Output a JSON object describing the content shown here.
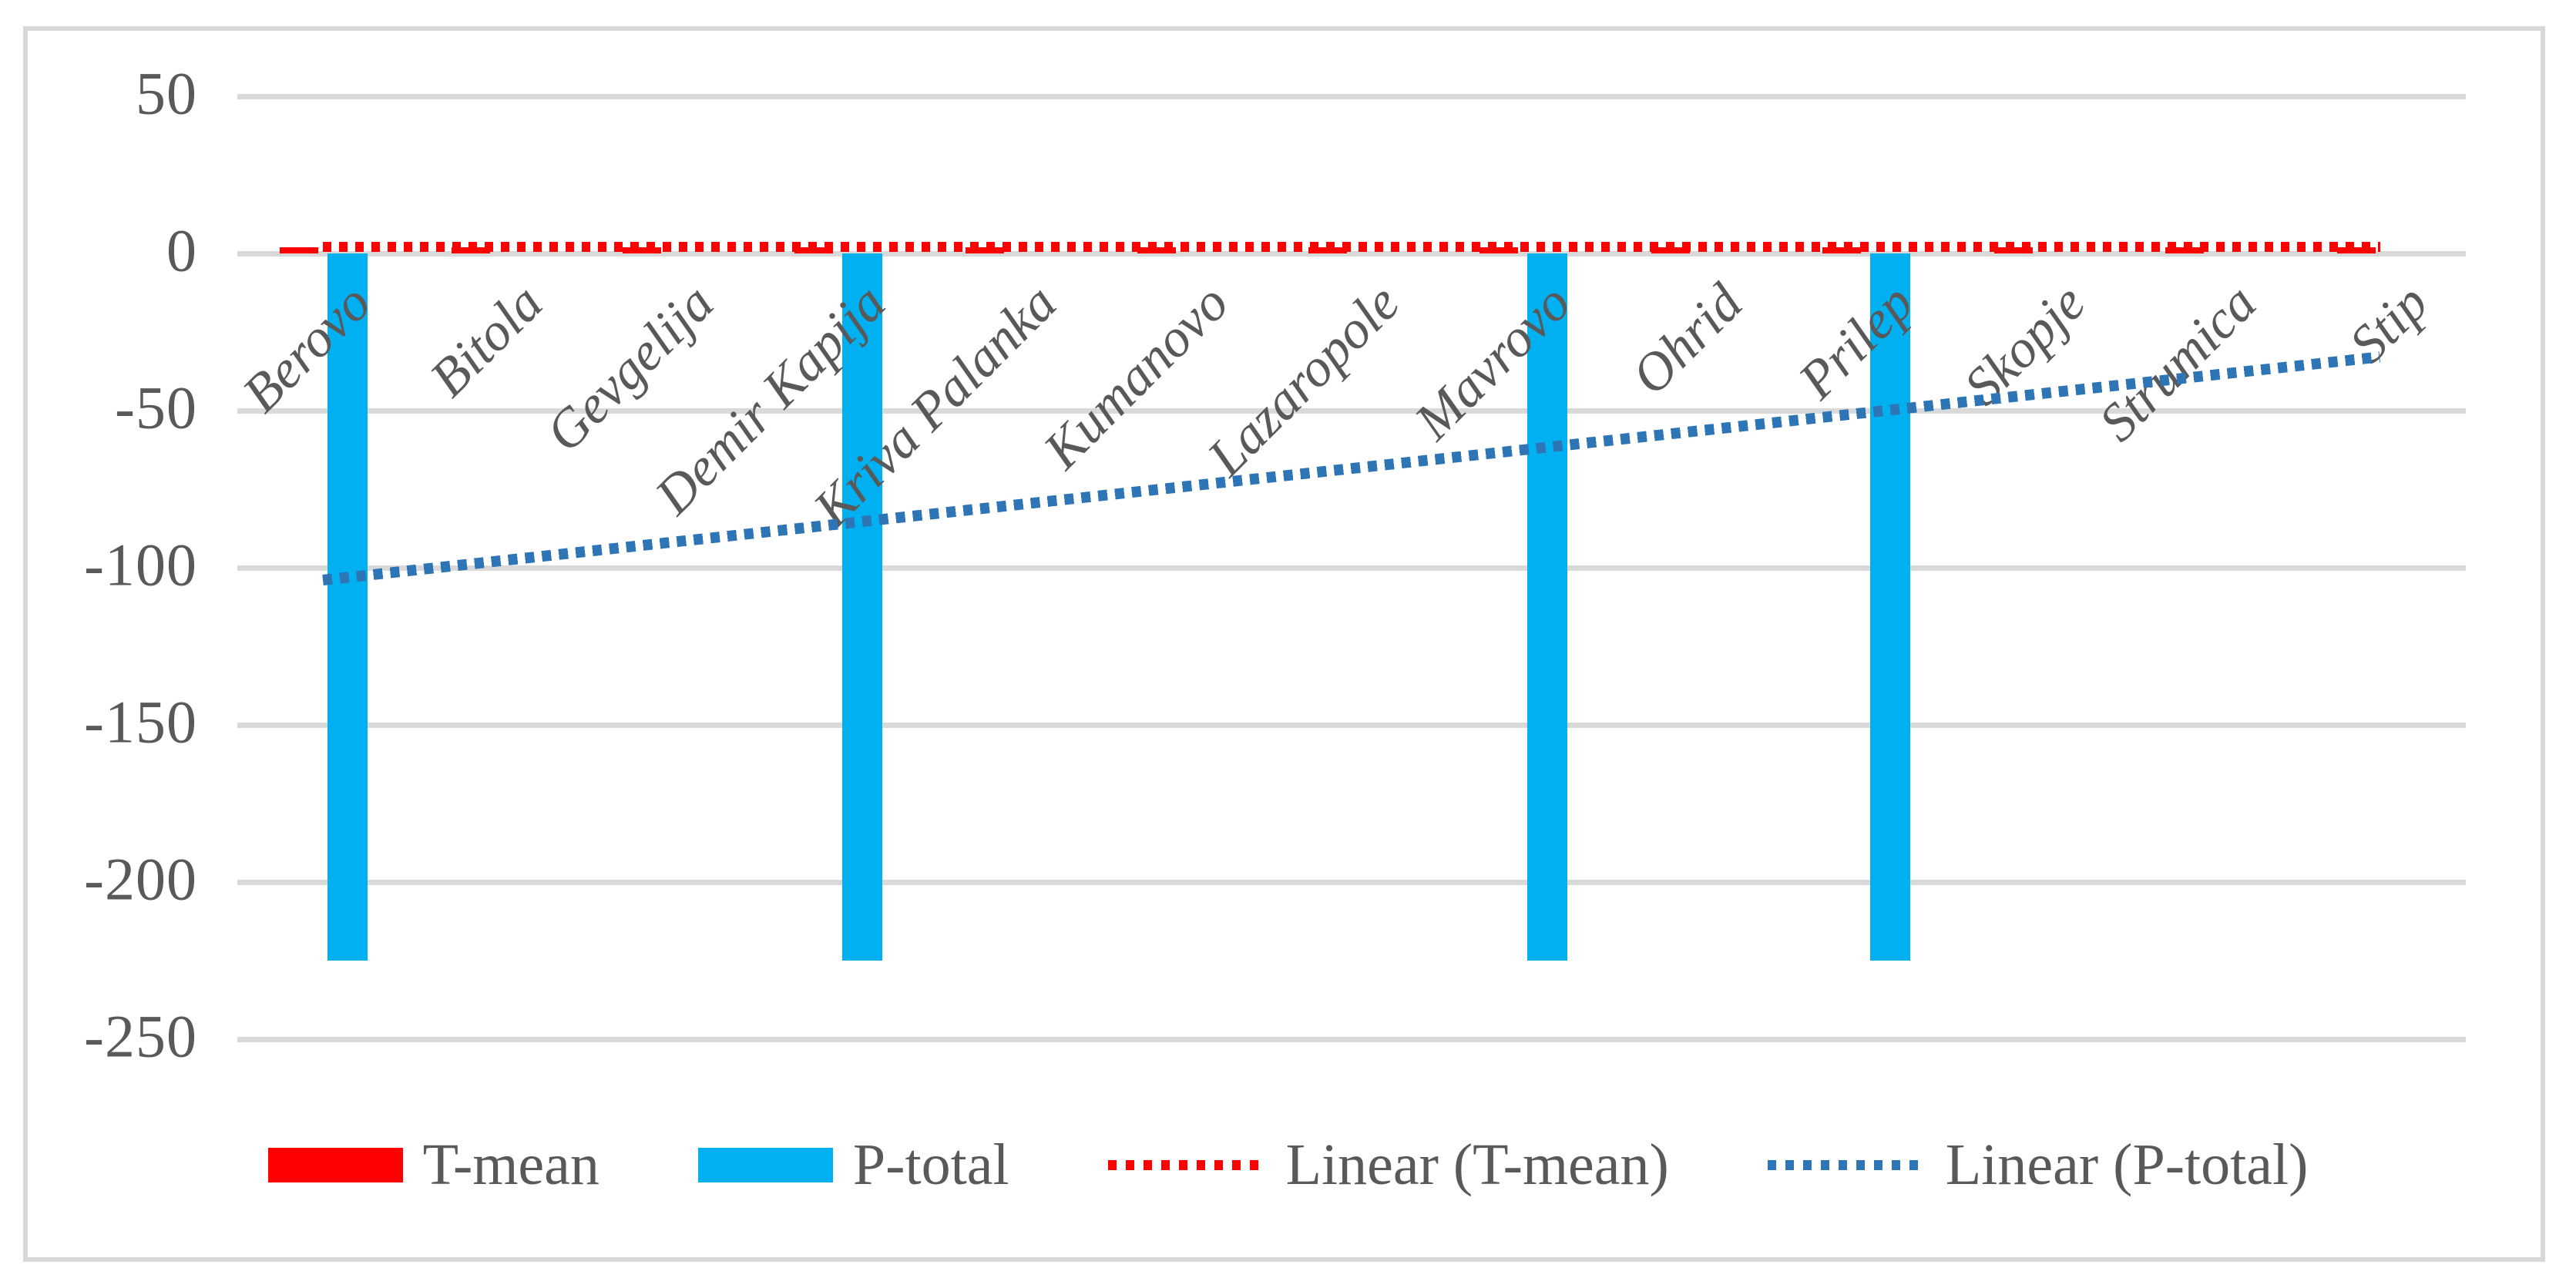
{
  "chart_data": {
    "type": "bar",
    "title": "",
    "xlabel": "",
    "ylabel": "",
    "categories": [
      "Berovo",
      "Bitola",
      "Gevgelija",
      "Demir Kapija",
      "Kriva Palanka",
      "Kumanovo",
      "Lazaropole",
      "Mavrovo",
      "Ohrid",
      "Prilep",
      "Skopje",
      "Strumica",
      "Stip"
    ],
    "series": [
      {
        "name": "T-mean",
        "type": "bar",
        "color": "#ff0000",
        "values": [
          2,
          2,
          2,
          2,
          2,
          2,
          2,
          2,
          2,
          2,
          2,
          2,
          2
        ]
      },
      {
        "name": "P-total",
        "type": "bar",
        "color": "#00b0f0",
        "values": [
          -225,
          null,
          null,
          -225,
          null,
          null,
          null,
          -225,
          null,
          -225,
          null,
          null,
          null
        ]
      }
    ],
    "trendlines": [
      {
        "name": "Linear (T-mean)",
        "color": "#ff0000",
        "style": "dotted",
        "start_value": 2,
        "end_value": 2
      },
      {
        "name": "Linear (P-total)",
        "color": "#2e75b6",
        "style": "dotted",
        "start_value": -104,
        "end_value": -33
      }
    ],
    "y_axis": {
      "min": -250,
      "max": 70,
      "major_unit": 50,
      "ticks": [
        50,
        0,
        -50,
        -100,
        -150,
        -200,
        -250
      ],
      "tick_labels": [
        "50",
        "0",
        "-50",
        "-100",
        "-150",
        "-200",
        "-250"
      ],
      "gridlines": true
    },
    "x_axis": {
      "label_rotation_deg": 45,
      "label_style": "italic"
    },
    "legend": {
      "position": "bottom",
      "entries": [
        {
          "label": "T-mean",
          "swatch": "rect",
          "color": "#ff0000"
        },
        {
          "label": "P-total",
          "swatch": "rect",
          "color": "#00b0f0"
        },
        {
          "label": "Linear (T-mean)",
          "swatch": "dotted-line",
          "color": "#ff0000"
        },
        {
          "label": "Linear (P-total)",
          "swatch": "dotted-line",
          "color": "#2e75b6"
        }
      ]
    },
    "colors": {
      "gridline": "#d9d9d9",
      "axis_text": "#595959",
      "category_text": "#595959",
      "chart_border": "#d8d8d8",
      "background": "#ffffff"
    }
  }
}
